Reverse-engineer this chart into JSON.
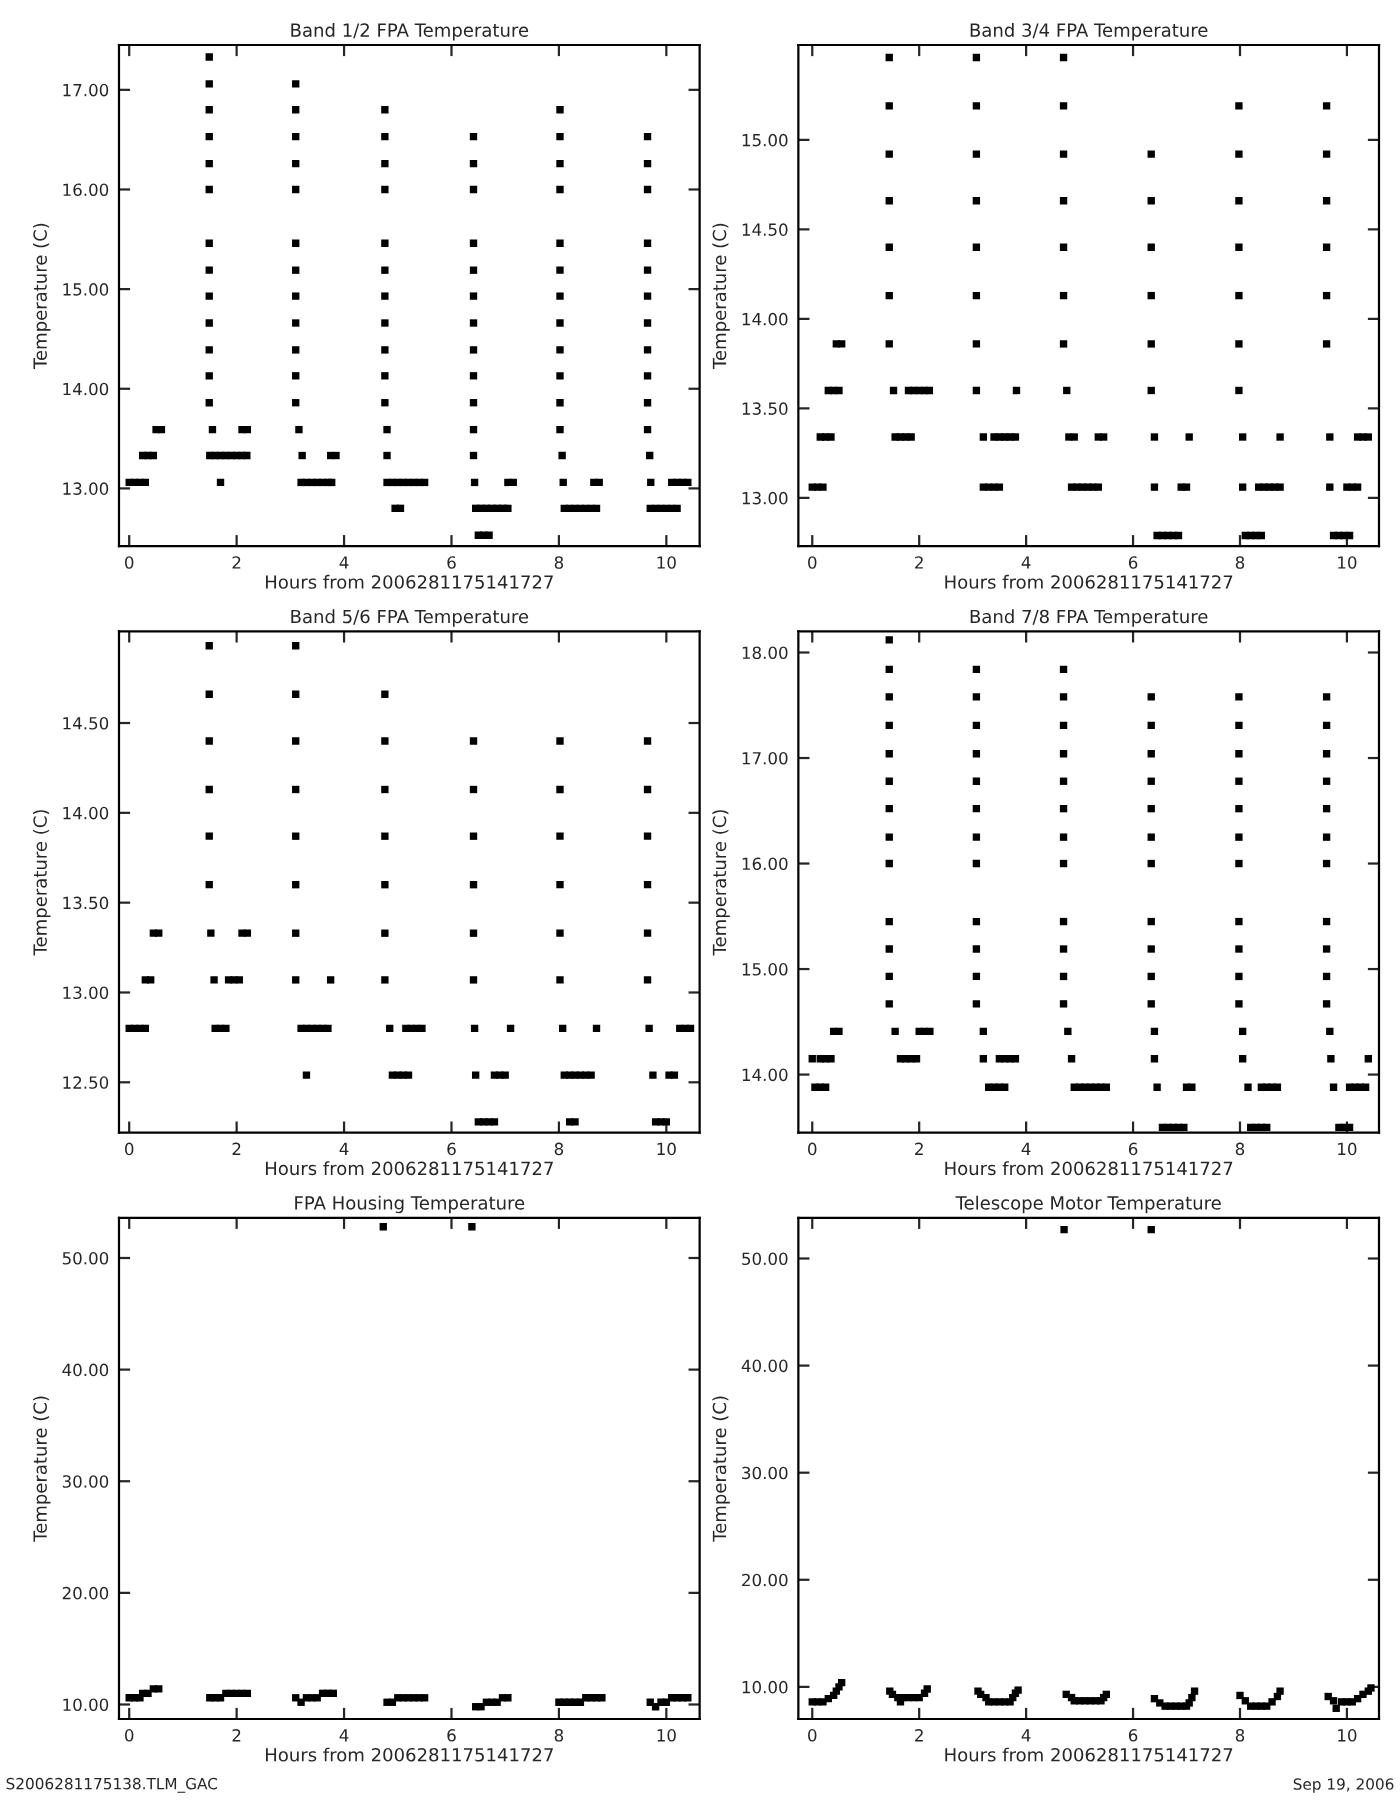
{
  "chart_data": [
    {
      "type": "scatter",
      "title": "Band 1/2 FPA Temperature",
      "xlabel": "Hours from 2006281175141727",
      "ylabel": "Temperature (C)",
      "marker": "square",
      "xlim": [
        -0.19,
        10.62
      ],
      "xticks": [
        0,
        2,
        4,
        6,
        8,
        10
      ],
      "ylim": [
        12.42,
        17.45
      ],
      "yticks": [
        {
          "value": 13,
          "label": "13.00"
        },
        {
          "value": 14,
          "label": "14.00"
        },
        {
          "value": 15,
          "label": "15.00"
        },
        {
          "value": 16,
          "label": "16.00"
        },
        {
          "value": 17,
          "label": "17.00"
        }
      ],
      "series": [
        {
          "color": "#000000",
          "x": [
            0,
            0.1,
            0.2,
            0.3
          ],
          "values": [
            13.06,
            13.06,
            13.06,
            13.06
          ]
        },
        {
          "color": "#000000",
          "x": [
            0.25,
            0.35,
            0.45
          ],
          "values": [
            13.33,
            13.33,
            13.33
          ]
        },
        {
          "color": "#000000",
          "x": [
            0.5,
            0.6
          ],
          "values": [
            13.59,
            13.59
          ]
        },
        {
          "color": "#000000",
          "x": [
            1.55,
            1.49,
            1.49,
            1.49,
            1.49,
            1.49,
            1.49,
            1.49,
            1.49,
            1.49,
            1.49,
            1.49,
            1.49,
            1.49
          ],
          "values": [
            13.59,
            13.86,
            14.13,
            14.39,
            14.66,
            14.93,
            15.19,
            15.46,
            16.0,
            16.26,
            16.53,
            16.8,
            17.06,
            17.33
          ]
        },
        {
          "color": "#000000",
          "x": [
            1.5,
            1.6,
            1.7,
            1.8,
            1.9,
            2.0,
            2.1,
            2.19
          ],
          "values": [
            13.33,
            13.33,
            13.33,
            13.33,
            13.33,
            13.33,
            13.33,
            13.33
          ]
        },
        {
          "color": "#000000",
          "x": [
            1.7,
            2.1,
            2.2
          ],
          "values": [
            13.06,
            13.59,
            13.59
          ]
        },
        {
          "color": "#000000",
          "x": [
            3.22,
            3.16,
            3.1,
            3.1,
            3.1,
            3.1,
            3.1,
            3.1,
            3.1,
            3.1,
            3.1,
            3.1,
            3.1,
            3.1
          ],
          "values": [
            13.33,
            13.59,
            13.86,
            14.13,
            14.39,
            14.66,
            14.93,
            15.19,
            15.46,
            16.0,
            16.26,
            16.53,
            16.8,
            17.06
          ]
        },
        {
          "color": "#000000",
          "x": [
            3.2,
            3.3,
            3.4,
            3.5,
            3.6,
            3.7,
            3.77,
            3.75,
            3.85
          ],
          "values": [
            13.06,
            13.06,
            13.06,
            13.06,
            13.06,
            13.06,
            13.06,
            13.33,
            13.33
          ]
        },
        {
          "color": "#000000",
          "x": [
            4.8,
            4.8,
            4.76,
            4.76,
            4.76,
            4.76,
            4.76,
            4.76,
            4.76,
            4.76,
            4.76,
            4.76,
            4.76
          ],
          "values": [
            13.33,
            13.59,
            13.86,
            14.13,
            14.39,
            14.66,
            14.93,
            15.19,
            15.46,
            16.0,
            16.26,
            16.53,
            16.8
          ]
        },
        {
          "color": "#000000",
          "x": [
            4.8,
            4.9,
            5.0,
            5.1,
            5.2,
            5.3,
            5.4,
            5.5,
            4.95,
            5.05
          ],
          "values": [
            13.06,
            13.06,
            13.06,
            13.06,
            13.06,
            13.06,
            13.06,
            13.06,
            12.8,
            12.8
          ]
        },
        {
          "color": "#000000",
          "x": [
            6.43,
            6.41,
            6.41,
            6.41,
            6.41,
            6.41,
            6.41,
            6.41,
            6.41,
            6.41,
            6.41,
            6.41,
            6.41
          ],
          "values": [
            13.06,
            13.33,
            13.59,
            13.86,
            14.13,
            14.39,
            14.66,
            14.93,
            15.19,
            15.46,
            16.0,
            16.26,
            16.53
          ]
        },
        {
          "color": "#000000",
          "x": [
            6.45,
            6.55,
            6.65,
            6.75,
            6.85,
            6.95,
            7.05,
            6.5,
            6.6,
            6.7,
            7.05,
            7.15
          ],
          "values": [
            12.8,
            12.8,
            12.8,
            12.8,
            12.8,
            12.8,
            12.8,
            12.53,
            12.53,
            12.53,
            13.06,
            13.06
          ]
        },
        {
          "color": "#000000",
          "x": [
            8.08,
            8.06,
            8.02,
            8.02,
            8.02,
            8.02,
            8.02,
            8.02,
            8.02,
            8.02,
            8.02,
            8.02,
            8.02,
            8.02
          ],
          "values": [
            13.06,
            13.33,
            13.59,
            13.86,
            14.13,
            14.39,
            14.66,
            14.93,
            15.19,
            15.46,
            16.0,
            16.26,
            16.53,
            16.8
          ]
        },
        {
          "color": "#000000",
          "x": [
            8.1,
            8.2,
            8.3,
            8.4,
            8.5,
            8.6,
            8.7,
            8.65,
            8.75
          ],
          "values": [
            12.8,
            12.8,
            12.8,
            12.8,
            12.8,
            12.8,
            12.8,
            13.06,
            13.06
          ]
        },
        {
          "color": "#000000",
          "x": [
            9.71,
            9.69,
            9.65,
            9.65,
            9.65,
            9.65,
            9.65,
            9.65,
            9.65,
            9.65,
            9.65,
            9.65,
            9.65
          ],
          "values": [
            13.06,
            13.33,
            13.59,
            13.86,
            14.13,
            14.39,
            14.66,
            14.93,
            15.19,
            15.46,
            16.0,
            16.26,
            16.53
          ]
        },
        {
          "color": "#000000",
          "x": [
            9.7,
            9.8,
            9.9,
            10.0,
            10.1,
            10.2,
            10.1,
            10.2,
            10.3,
            10.4
          ],
          "values": [
            12.8,
            12.8,
            12.8,
            12.8,
            12.8,
            12.8,
            13.06,
            13.06,
            13.06,
            13.06
          ]
        }
      ]
    },
    {
      "type": "scatter",
      "title": "Band 3/4 FPA Temperature",
      "xlabel": "Hours from 2006281175141727",
      "ylabel": "Temperature (C)",
      "marker": "square",
      "xlim": [
        -0.26,
        10.6
      ],
      "xticks": [
        0,
        2,
        4,
        6,
        8,
        10
      ],
      "ylim": [
        12.73,
        15.53
      ],
      "yticks": [
        {
          "value": 13,
          "label": "13.00"
        },
        {
          "value": 13.5,
          "label": "13.50"
        },
        {
          "value": 14,
          "label": "14.00"
        },
        {
          "value": 14.5,
          "label": "14.50"
        },
        {
          "value": 15,
          "label": "15.00"
        }
      ],
      "series": [
        {
          "color": "#000000",
          "x": [
            0,
            0.1,
            0.2
          ],
          "values": [
            13.06,
            13.06,
            13.06
          ]
        },
        {
          "color": "#000000",
          "x": [
            0.15,
            0.25,
            0.35
          ],
          "values": [
            13.34,
            13.34,
            13.34
          ]
        },
        {
          "color": "#000000",
          "x": [
            0.3,
            0.4,
            0.5
          ],
          "values": [
            13.6,
            13.6,
            13.6
          ]
        },
        {
          "color": "#000000",
          "x": [
            0.45,
            0.55
          ],
          "values": [
            13.86,
            13.86
          ]
        },
        {
          "color": "#000000",
          "x": [
            1.52,
            1.44,
            1.44,
            1.44,
            1.44,
            1.44,
            1.44,
            1.44
          ],
          "values": [
            13.6,
            13.86,
            14.13,
            14.4,
            14.66,
            14.92,
            15.19,
            15.46
          ]
        },
        {
          "color": "#000000",
          "x": [
            1.55,
            1.65,
            1.75,
            1.85,
            1.8,
            1.9,
            2.0,
            2.1,
            2.19
          ],
          "values": [
            13.34,
            13.34,
            13.34,
            13.34,
            13.6,
            13.6,
            13.6,
            13.6,
            13.6
          ]
        },
        {
          "color": "#000000",
          "x": [
            3.07,
            3.07,
            3.07,
            3.07,
            3.07,
            3.07,
            3.07,
            3.07
          ],
          "values": [
            13.6,
            13.86,
            14.13,
            14.4,
            14.66,
            14.92,
            15.19,
            15.46
          ]
        },
        {
          "color": "#000000",
          "x": [
            3.2,
            3.2,
            3.3,
            3.4,
            3.5,
            3.4,
            3.5,
            3.6,
            3.7,
            3.8,
            3.82
          ],
          "values": [
            13.34,
            13.06,
            13.06,
            13.06,
            13.06,
            13.34,
            13.34,
            13.34,
            13.34,
            13.34,
            13.6
          ]
        },
        {
          "color": "#000000",
          "x": [
            4.76,
            4.7,
            4.7,
            4.7,
            4.7,
            4.7,
            4.7,
            4.7
          ],
          "values": [
            13.6,
            13.86,
            14.13,
            14.4,
            14.66,
            14.92,
            15.19,
            15.46
          ]
        },
        {
          "color": "#000000",
          "x": [
            4.8,
            4.9,
            4.85,
            4.95,
            5.05,
            5.15,
            5.25,
            5.35,
            5.35,
            5.45
          ],
          "values": [
            13.34,
            13.34,
            13.06,
            13.06,
            13.06,
            13.06,
            13.06,
            13.06,
            13.34,
            13.34
          ]
        },
        {
          "color": "#000000",
          "x": [
            6.4,
            6.4,
            6.34,
            6.34,
            6.34,
            6.34,
            6.34,
            6.34
          ],
          "values": [
            13.06,
            13.34,
            13.6,
            13.86,
            14.13,
            14.4,
            14.66,
            14.92
          ]
        },
        {
          "color": "#000000",
          "x": [
            6.45,
            6.55,
            6.65,
            6.75,
            6.85,
            6.9,
            7.0,
            7.05
          ],
          "values": [
            12.79,
            12.79,
            12.79,
            12.79,
            12.79,
            13.06,
            13.06,
            13.34
          ]
        },
        {
          "color": "#000000",
          "x": [
            8.05,
            8.05,
            7.98,
            7.98,
            7.98,
            7.98,
            7.98,
            7.98,
            7.98
          ],
          "values": [
            13.06,
            13.34,
            13.6,
            13.86,
            14.13,
            14.4,
            14.66,
            14.92,
            15.19
          ]
        },
        {
          "color": "#000000",
          "x": [
            8.1,
            8.2,
            8.3,
            8.4,
            8.35,
            8.45,
            8.55,
            8.65,
            8.75,
            8.75
          ],
          "values": [
            12.79,
            12.79,
            12.79,
            12.79,
            13.06,
            13.06,
            13.06,
            13.06,
            13.06,
            13.34
          ]
        },
        {
          "color": "#000000",
          "x": [
            9.68,
            9.68,
            9.62,
            9.62,
            9.62,
            9.62,
            9.62,
            9.62
          ],
          "values": [
            13.06,
            13.34,
            13.86,
            14.13,
            14.4,
            14.66,
            14.92,
            15.19
          ]
        },
        {
          "color": "#000000",
          "x": [
            9.75,
            9.85,
            9.95,
            10.05,
            10.0,
            10.1,
            10.2,
            10.2,
            10.3,
            10.4
          ],
          "values": [
            12.79,
            12.79,
            12.79,
            12.79,
            13.06,
            13.06,
            13.06,
            13.34,
            13.34,
            13.34
          ]
        }
      ]
    },
    {
      "type": "scatter",
      "title": "Band 5/6 FPA Temperature",
      "xlabel": "Hours from 2006281175141727",
      "ylabel": "Temperature (C)",
      "marker": "square",
      "xlim": [
        -0.19,
        10.62
      ],
      "xticks": [
        0,
        2,
        4,
        6,
        8,
        10
      ],
      "ylim": [
        12.22,
        15.01
      ],
      "yticks": [
        {
          "value": 12.5,
          "label": "12.50"
        },
        {
          "value": 13,
          "label": "13.00"
        },
        {
          "value": 13.5,
          "label": "13.50"
        },
        {
          "value": 14,
          "label": "14.00"
        },
        {
          "value": 14.5,
          "label": "14.50"
        }
      ],
      "series": [
        {
          "color": "#000000",
          "x": [
            0,
            0.1,
            0.2,
            0.3,
            0.3,
            0.4,
            0.45,
            0.55
          ],
          "values": [
            12.8,
            12.8,
            12.8,
            12.8,
            13.07,
            13.07,
            13.33,
            13.33
          ]
        },
        {
          "color": "#000000",
          "x": [
            1.52,
            1.58,
            1.49,
            1.49,
            1.49,
            1.49,
            1.49,
            1.49
          ],
          "values": [
            13.33,
            13.07,
            13.6,
            13.87,
            14.13,
            14.4,
            14.66,
            14.93
          ]
        },
        {
          "color": "#000000",
          "x": [
            1.6,
            1.7,
            1.8,
            1.85,
            1.95,
            2.05,
            2.1,
            2.2
          ],
          "values": [
            12.8,
            12.8,
            12.8,
            13.07,
            13.07,
            13.07,
            13.33,
            13.33
          ]
        },
        {
          "color": "#000000",
          "x": [
            3.1,
            3.1,
            3.1,
            3.1,
            3.1,
            3.1,
            3.1,
            3.1
          ],
          "values": [
            13.07,
            13.33,
            13.6,
            13.87,
            14.13,
            14.4,
            14.66,
            14.93
          ]
        },
        {
          "color": "#000000",
          "x": [
            3.2,
            3.3,
            3.4,
            3.5,
            3.6,
            3.7,
            3.3,
            3.75
          ],
          "values": [
            12.8,
            12.8,
            12.8,
            12.8,
            12.8,
            12.8,
            12.54,
            13.07
          ]
        },
        {
          "color": "#000000",
          "x": [
            4.76,
            4.76,
            4.76,
            4.76,
            4.76,
            4.76,
            4.76
          ],
          "values": [
            13.07,
            13.33,
            13.6,
            13.87,
            14.13,
            14.4,
            14.66
          ]
        },
        {
          "color": "#000000",
          "x": [
            4.85,
            4.9,
            5.0,
            5.1,
            5.2,
            5.15,
            5.25,
            5.35,
            5.45
          ],
          "values": [
            12.8,
            12.54,
            12.54,
            12.54,
            12.54,
            12.8,
            12.8,
            12.8,
            12.8
          ]
        },
        {
          "color": "#000000",
          "x": [
            6.41,
            6.41,
            6.41,
            6.41,
            6.41,
            6.41
          ],
          "values": [
            13.07,
            13.33,
            13.6,
            13.87,
            14.13,
            14.4
          ]
        },
        {
          "color": "#000000",
          "x": [
            6.43,
            6.45,
            6.5,
            6.6,
            6.7,
            6.8,
            6.8,
            6.9,
            7.0,
            7.1
          ],
          "values": [
            12.8,
            12.54,
            12.28,
            12.28,
            12.28,
            12.28,
            12.54,
            12.54,
            12.54,
            12.8
          ]
        },
        {
          "color": "#000000",
          "x": [
            8.02,
            8.02,
            8.02,
            8.02,
            8.02,
            8.02
          ],
          "values": [
            13.07,
            13.33,
            13.6,
            13.87,
            14.13,
            14.4
          ]
        },
        {
          "color": "#000000",
          "x": [
            8.07,
            8.1,
            8.2,
            8.3,
            8.4,
            8.5,
            8.6,
            8.2,
            8.3,
            8.7
          ],
          "values": [
            12.8,
            12.54,
            12.54,
            12.54,
            12.54,
            12.54,
            12.54,
            12.28,
            12.28,
            12.8
          ]
        },
        {
          "color": "#000000",
          "x": [
            9.65,
            9.65,
            9.65,
            9.65,
            9.65,
            9.65
          ],
          "values": [
            13.07,
            13.33,
            13.6,
            13.87,
            14.13,
            14.4
          ]
        },
        {
          "color": "#000000",
          "x": [
            9.68,
            9.75,
            9.8,
            9.9,
            10.0,
            10.05,
            10.15,
            10.25,
            10.35,
            10.45
          ],
          "values": [
            12.8,
            12.54,
            12.28,
            12.28,
            12.28,
            12.54,
            12.54,
            12.8,
            12.8,
            12.8
          ]
        }
      ]
    },
    {
      "type": "scatter",
      "title": "Band 7/8 FPA Temperature",
      "xlabel": "Hours from 2006281175141727",
      "ylabel": "Temperature (C)",
      "marker": "square",
      "xlim": [
        -0.26,
        10.6
      ],
      "xticks": [
        0,
        2,
        4,
        6,
        8,
        10
      ],
      "ylim": [
        13.45,
        18.2
      ],
      "yticks": [
        {
          "value": 14,
          "label": "14.00"
        },
        {
          "value": 15,
          "label": "15.00"
        },
        {
          "value": 16,
          "label": "16.00"
        },
        {
          "value": 17,
          "label": "17.00"
        },
        {
          "value": 18,
          "label": "18.00"
        }
      ],
      "series": [
        {
          "color": "#000000",
          "x": [
            0,
            0.15,
            0.25,
            0.35,
            0.05,
            0.15,
            0.25,
            0.4,
            0.5
          ],
          "values": [
            14.15,
            14.15,
            14.15,
            14.15,
            13.88,
            13.88,
            13.88,
            14.41,
            14.41
          ]
        },
        {
          "color": "#000000",
          "x": [
            1.55,
            1.44,
            1.44,
            1.44,
            1.44,
            1.44,
            1.44,
            1.44,
            1.44,
            1.44,
            1.44,
            1.44,
            1.44,
            1.44
          ],
          "values": [
            14.41,
            14.67,
            14.93,
            15.19,
            15.45,
            16.0,
            16.25,
            16.52,
            16.78,
            17.04,
            17.31,
            17.58,
            17.84,
            18.12
          ]
        },
        {
          "color": "#000000",
          "x": [
            1.65,
            1.75,
            1.85,
            1.95,
            2.0,
            2.1,
            2.2
          ],
          "values": [
            14.15,
            14.15,
            14.15,
            14.15,
            14.41,
            14.41,
            14.41
          ]
        },
        {
          "color": "#000000",
          "x": [
            3.2,
            3.2,
            3.07,
            3.07,
            3.07,
            3.07,
            3.07,
            3.07,
            3.07,
            3.07,
            3.07,
            3.07,
            3.07,
            3.07
          ],
          "values": [
            14.15,
            14.41,
            14.67,
            14.93,
            15.19,
            15.45,
            16.0,
            16.25,
            16.52,
            16.78,
            17.04,
            17.31,
            17.58,
            17.84
          ]
        },
        {
          "color": "#000000",
          "x": [
            3.3,
            3.4,
            3.5,
            3.6,
            3.5,
            3.6,
            3.7,
            3.8
          ],
          "values": [
            13.88,
            13.88,
            13.88,
            13.88,
            14.15,
            14.15,
            14.15,
            14.15
          ]
        },
        {
          "color": "#000000",
          "x": [
            4.85,
            4.78,
            4.7,
            4.7,
            4.7,
            4.7,
            4.7,
            4.7,
            4.7,
            4.7,
            4.7,
            4.7,
            4.7,
            4.7
          ],
          "values": [
            14.15,
            14.41,
            14.67,
            14.93,
            15.19,
            15.45,
            16.0,
            16.25,
            16.52,
            16.78,
            17.04,
            17.31,
            17.58,
            17.84
          ]
        },
        {
          "color": "#000000",
          "x": [
            4.9,
            5.0,
            5.1,
            5.2,
            5.3,
            5.4,
            5.5
          ],
          "values": [
            13.88,
            13.88,
            13.88,
            13.88,
            13.88,
            13.88,
            13.88
          ]
        },
        {
          "color": "#000000",
          "x": [
            6.4,
            6.4,
            6.34,
            6.34,
            6.34,
            6.34,
            6.34,
            6.34,
            6.34,
            6.34,
            6.34,
            6.34,
            6.34
          ],
          "values": [
            14.15,
            14.41,
            14.67,
            14.93,
            15.19,
            15.45,
            16.0,
            16.25,
            16.52,
            16.78,
            17.04,
            17.31,
            17.58
          ]
        },
        {
          "color": "#000000",
          "x": [
            6.45,
            6.55,
            6.65,
            6.75,
            6.85,
            6.95,
            7.0,
            7.1
          ],
          "values": [
            13.88,
            13.5,
            13.5,
            13.5,
            13.5,
            13.5,
            13.88,
            13.88
          ]
        },
        {
          "color": "#000000",
          "x": [
            8.05,
            8.05,
            7.98,
            7.98,
            7.98,
            7.98,
            7.98,
            7.98,
            7.98,
            7.98,
            7.98,
            7.98,
            7.98
          ],
          "values": [
            14.15,
            14.41,
            14.67,
            14.93,
            15.19,
            15.45,
            16.0,
            16.25,
            16.52,
            16.78,
            17.04,
            17.31,
            17.58
          ]
        },
        {
          "color": "#000000",
          "x": [
            8.15,
            8.2,
            8.3,
            8.4,
            8.5,
            8.4,
            8.5,
            8.6,
            8.7
          ],
          "values": [
            13.88,
            13.5,
            13.5,
            13.5,
            13.5,
            13.88,
            13.88,
            13.88,
            13.88
          ]
        },
        {
          "color": "#000000",
          "x": [
            9.7,
            9.68,
            9.62,
            9.62,
            9.62,
            9.62,
            9.62,
            9.62,
            9.62,
            9.62,
            9.62,
            9.62,
            9.62
          ],
          "values": [
            14.15,
            14.41,
            14.67,
            14.93,
            15.19,
            15.45,
            16.0,
            16.25,
            16.52,
            16.78,
            17.04,
            17.31,
            17.58
          ]
        },
        {
          "color": "#000000",
          "x": [
            9.75,
            9.85,
            9.95,
            10.05,
            10.05,
            10.15,
            10.25,
            10.35,
            10.4
          ],
          "values": [
            13.88,
            13.5,
            13.5,
            13.5,
            13.88,
            13.88,
            13.88,
            13.88,
            14.15
          ]
        }
      ]
    },
    {
      "type": "scatter",
      "title": "FPA Housing Temperature",
      "xlabel": "Hours from 2006281175141727",
      "ylabel": "Temperature (C)",
      "marker": "square",
      "xlim": [
        -0.19,
        10.62
      ],
      "xticks": [
        0,
        2,
        4,
        6,
        8,
        10
      ],
      "ylim": [
        8.7,
        53.6
      ],
      "yticks": [
        {
          "value": 10,
          "label": "10.00"
        },
        {
          "value": 20,
          "label": "20.00"
        },
        {
          "value": 30,
          "label": "30.00"
        },
        {
          "value": 40,
          "label": "40.00"
        },
        {
          "value": 50,
          "label": "50.00"
        }
      ],
      "annotations": [
        "S2006281175138.TLM_GAC"
      ],
      "series": [
        {
          "color": "#000000",
          "x": [
            0,
            0.1,
            0.2,
            0.25,
            0.35,
            0.45,
            0.55
          ],
          "values": [
            10.6,
            10.6,
            10.6,
            11.0,
            11.0,
            11.4,
            11.4
          ]
        },
        {
          "color": "#000000",
          "x": [
            1.5,
            1.6,
            1.7,
            1.8,
            1.9,
            2.0,
            2.1,
            2.2
          ],
          "values": [
            10.6,
            10.6,
            10.6,
            11.0,
            11.0,
            11.0,
            11.0,
            11.0
          ]
        },
        {
          "color": "#000000",
          "x": [
            3.1,
            3.2,
            3.3,
            3.4,
            3.5,
            3.6,
            3.7,
            3.8
          ],
          "values": [
            10.6,
            10.2,
            10.6,
            10.6,
            10.6,
            11.0,
            11.0,
            11.0
          ]
        },
        {
          "color": "#000000",
          "x": [
            4.73
          ],
          "values": [
            52.8
          ]
        },
        {
          "color": "#000000",
          "x": [
            4.8,
            4.9,
            5.0,
            5.1,
            5.2,
            5.3,
            5.4,
            5.5
          ],
          "values": [
            10.2,
            10.2,
            10.6,
            10.6,
            10.6,
            10.6,
            10.6,
            10.6
          ]
        },
        {
          "color": "#000000",
          "x": [
            6.38
          ],
          "values": [
            52.8
          ]
        },
        {
          "color": "#000000",
          "x": [
            6.45,
            6.55,
            6.65,
            6.75,
            6.85,
            6.95,
            7.05
          ],
          "values": [
            9.8,
            9.8,
            10.2,
            10.2,
            10.2,
            10.6,
            10.6
          ]
        },
        {
          "color": "#000000",
          "x": [
            8.0,
            8.1,
            8.2,
            8.3,
            8.4,
            8.5,
            8.6,
            8.7,
            8.8
          ],
          "values": [
            10.2,
            10.2,
            10.2,
            10.2,
            10.2,
            10.6,
            10.6,
            10.6,
            10.6
          ]
        },
        {
          "color": "#000000",
          "x": [
            9.7,
            9.8,
            9.9,
            10.0,
            10.1,
            10.2,
            10.3,
            10.4
          ],
          "values": [
            10.2,
            9.8,
            10.2,
            10.2,
            10.6,
            10.6,
            10.6,
            10.6
          ]
        }
      ]
    },
    {
      "type": "scatter",
      "title": "Telescope Motor Temperature",
      "xlabel": "Hours from 2006281175141727",
      "ylabel": "Temperature (C)",
      "marker": "square",
      "xlim": [
        -0.26,
        10.6
      ],
      "xticks": [
        0,
        2,
        4,
        6,
        8,
        10
      ],
      "ylim": [
        7.0,
        53.8
      ],
      "yticks": [
        {
          "value": 10,
          "label": "10.00"
        },
        {
          "value": 20,
          "label": "20.00"
        },
        {
          "value": 30,
          "label": "30.00"
        },
        {
          "value": 40,
          "label": "40.00"
        },
        {
          "value": 50,
          "label": "50.00"
        }
      ],
      "annotations": [
        "Sep 19, 2006"
      ],
      "series": [
        {
          "color": "#000000",
          "x": [
            0,
            0.1,
            0.2,
            0.3,
            0.4,
            0.45,
            0.5,
            0.55
          ],
          "values": [
            8.6,
            8.6,
            8.6,
            8.9,
            9.2,
            9.6,
            10.0,
            10.4
          ]
        },
        {
          "color": "#000000",
          "x": [
            1.45,
            1.5,
            1.6,
            1.65,
            1.7,
            1.8,
            1.9,
            2.0,
            2.1,
            2.15
          ],
          "values": [
            9.6,
            9.3,
            9.0,
            8.6,
            9.0,
            9.0,
            9.0,
            9.0,
            9.4,
            9.8
          ]
        },
        {
          "color": "#000000",
          "x": [
            3.1,
            3.15,
            3.25,
            3.3,
            3.4,
            3.5,
            3.6,
            3.7,
            3.75,
            3.8,
            3.85
          ],
          "values": [
            9.6,
            9.3,
            9.0,
            8.6,
            8.6,
            8.6,
            8.6,
            8.6,
            9.0,
            9.4,
            9.7
          ]
        },
        {
          "color": "#000000",
          "x": [
            4.71
          ],
          "values": [
            52.7
          ]
        },
        {
          "color": "#000000",
          "x": [
            4.75,
            4.85,
            4.9,
            5.0,
            5.1,
            5.2,
            5.3,
            5.4,
            5.45,
            5.5
          ],
          "values": [
            9.3,
            9.0,
            8.7,
            8.7,
            8.7,
            8.7,
            8.7,
            8.7,
            9.0,
            9.3
          ]
        },
        {
          "color": "#000000",
          "x": [
            6.34
          ],
          "values": [
            52.7
          ]
        },
        {
          "color": "#000000",
          "x": [
            6.4,
            6.5,
            6.6,
            6.7,
            6.8,
            6.9,
            7.0,
            7.05,
            7.1,
            7.15
          ],
          "values": [
            8.9,
            8.5,
            8.2,
            8.2,
            8.2,
            8.2,
            8.2,
            8.5,
            9.0,
            9.6
          ]
        },
        {
          "color": "#000000",
          "x": [
            8.0,
            8.1,
            8.2,
            8.3,
            8.4,
            8.5,
            8.6,
            8.7,
            8.75
          ],
          "values": [
            9.2,
            8.7,
            8.2,
            8.2,
            8.2,
            8.2,
            8.6,
            9.1,
            9.6
          ]
        },
        {
          "color": "#000000",
          "x": [
            9.65,
            9.75,
            9.8,
            9.9,
            10.0,
            10.1,
            10.2,
            10.3,
            10.4,
            10.45
          ],
          "values": [
            9.1,
            8.7,
            8.0,
            8.6,
            8.6,
            8.6,
            8.9,
            9.3,
            9.6,
            9.9
          ]
        }
      ]
    }
  ]
}
